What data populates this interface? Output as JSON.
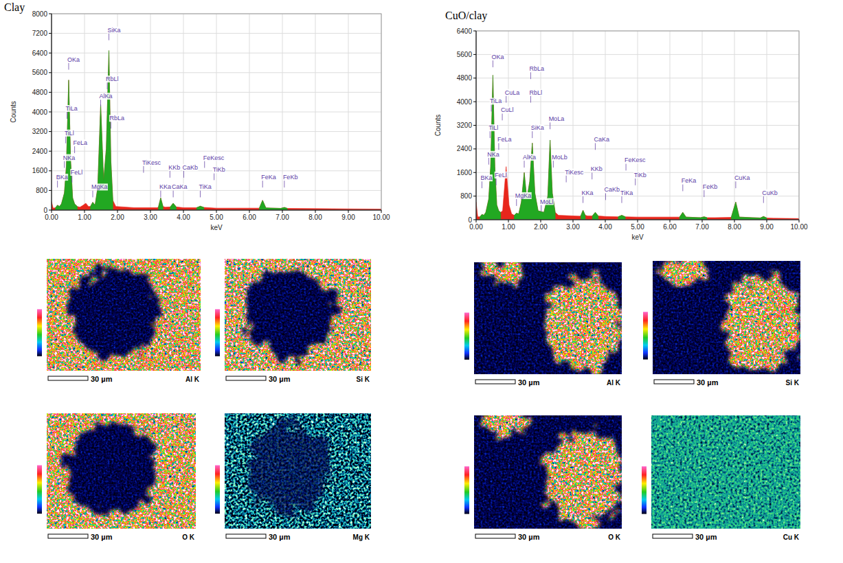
{
  "chart_data": [
    {
      "type": "area",
      "title": "Clay",
      "x_label": "keV",
      "y_label": "Counts",
      "x": [
        0,
        0.05,
        0.12,
        0.18,
        0.24,
        0.3,
        0.39,
        0.45,
        0.52,
        0.58,
        0.64,
        0.7,
        0.78,
        0.86,
        0.96,
        1.04,
        1.12,
        1.18,
        1.25,
        1.32,
        1.4,
        1.49,
        1.58,
        1.66,
        1.74,
        1.8,
        1.86,
        1.95,
        2.5,
        3.2,
        3.24,
        3.31,
        3.38,
        3.45,
        3.6,
        3.69,
        3.78,
        4.0,
        4.4,
        4.51,
        4.62,
        5.0,
        6.3,
        6.4,
        6.5,
        6.95,
        7.06,
        7.15,
        8.0,
        10.0
      ],
      "series": [
        {
          "color": "#e8271c",
          "values": [
            350,
            80,
            100,
            200,
            150,
            250,
            700,
            1800,
            5300,
            2000,
            500,
            250,
            150,
            120,
            200,
            280,
            150,
            150,
            320,
            200,
            900,
            4300,
            1200,
            2500,
            6500,
            2000,
            400,
            150,
            100,
            100,
            120,
            500,
            150,
            120,
            130,
            280,
            130,
            100,
            100,
            160,
            110,
            80,
            80,
            400,
            90,
            70,
            110,
            70,
            60,
            40
          ]
        },
        {
          "color": "#22a822",
          "values": [
            null,
            null,
            100,
            200,
            150,
            250,
            700,
            1800,
            5300,
            2000,
            500,
            250,
            150,
            null,
            null,
            null,
            null,
            150,
            320,
            200,
            900,
            4300,
            1200,
            2500,
            6500,
            2000,
            400,
            null,
            null,
            null,
            120,
            500,
            150,
            null,
            130,
            280,
            130,
            null,
            100,
            160,
            110,
            null,
            80,
            400,
            90,
            70,
            110,
            70,
            null,
            null
          ]
        }
      ],
      "xlim": [
        0,
        10
      ],
      "ylim": [
        0,
        8000
      ],
      "xticks": [
        {
          "value": 0,
          "label": "0.00"
        },
        {
          "value": 1,
          "label": "1.00"
        },
        {
          "value": 2,
          "label": "2.00"
        },
        {
          "value": 3,
          "label": "3.00"
        },
        {
          "value": 4,
          "label": "4.00"
        },
        {
          "value": 5,
          "label": "5.00"
        },
        {
          "value": 6,
          "label": "6.00"
        },
        {
          "value": 7,
          "label": "7.00"
        },
        {
          "value": 8,
          "label": "8.00"
        },
        {
          "value": 9,
          "label": "9.00"
        },
        {
          "value": 10,
          "label": "10.00"
        }
      ],
      "yticks": [
        0,
        800,
        1600,
        2400,
        3200,
        4000,
        4800,
        5600,
        6400,
        7200,
        8000
      ],
      "grid": true,
      "annotations": [
        {
          "text": "BKa",
          "x": 0.18,
          "y": 1200
        },
        {
          "text": "NKa",
          "x": 0.39,
          "y": 2000
        },
        {
          "text": "TiLl",
          "x": 0.43,
          "y": 3000
        },
        {
          "text": "TiLa",
          "x": 0.47,
          "y": 4000
        },
        {
          "text": "OKa",
          "x": 0.52,
          "y": 6000
        },
        {
          "text": "FeLl",
          "x": 0.62,
          "y": 1400
        },
        {
          "text": "FeLa",
          "x": 0.7,
          "y": 2600
        },
        {
          "text": "MgKa",
          "x": 1.25,
          "y": 800
        },
        {
          "text": "AlKa",
          "x": 1.49,
          "y": 4500
        },
        {
          "text": "RbLl",
          "x": 1.69,
          "y": 5200
        },
        {
          "text": "SiKa",
          "x": 1.74,
          "y": 7200
        },
        {
          "text": "RbLa",
          "x": 1.8,
          "y": 3600
        },
        {
          "text": "TiKesc",
          "x": 2.79,
          "y": 1800
        },
        {
          "text": "KKa",
          "x": 3.31,
          "y": 800
        },
        {
          "text": "KKb",
          "x": 3.59,
          "y": 1600
        },
        {
          "text": "CaKa",
          "x": 3.69,
          "y": 800
        },
        {
          "text": "CaKb",
          "x": 4.01,
          "y": 1600
        },
        {
          "text": "TiKa",
          "x": 4.51,
          "y": 800
        },
        {
          "text": "FeKesc",
          "x": 4.64,
          "y": 2000
        },
        {
          "text": "TiKb",
          "x": 4.93,
          "y": 1500
        },
        {
          "text": "FeKa",
          "x": 6.4,
          "y": 1200
        },
        {
          "text": "FeKb",
          "x": 7.06,
          "y": 1200
        }
      ]
    },
    {
      "type": "area",
      "title": "CuO/clay",
      "x_label": "keV",
      "y_label": "Counts",
      "x": [
        0,
        0.05,
        0.12,
        0.18,
        0.24,
        0.3,
        0.39,
        0.45,
        0.52,
        0.58,
        0.64,
        0.7,
        0.76,
        0.82,
        0.93,
        1.02,
        1.1,
        1.18,
        1.25,
        1.32,
        1.4,
        1.49,
        1.57,
        1.66,
        1.74,
        1.82,
        1.92,
        2.1,
        2.22,
        2.29,
        2.36,
        2.45,
        2.55,
        3.2,
        3.24,
        3.31,
        3.38,
        3.45,
        3.6,
        3.69,
        3.78,
        4.0,
        4.4,
        4.51,
        4.62,
        5.0,
        6.3,
        6.4,
        6.5,
        6.95,
        7.06,
        7.15,
        7.4,
        7.9,
        8.04,
        8.15,
        8.8,
        8.9,
        9.0,
        9.2,
        10.0
      ],
      "series": [
        {
          "color": "#e8271c",
          "values": [
            600,
            100,
            100,
            180,
            150,
            250,
            700,
            1800,
            4900,
            1800,
            500,
            300,
            250,
            300,
            1800,
            500,
            200,
            150,
            220,
            200,
            600,
            1600,
            700,
            1300,
            2600,
            900,
            300,
            250,
            800,
            2700,
            900,
            250,
            150,
            120,
            130,
            320,
            150,
            130,
            130,
            250,
            130,
            110,
            100,
            150,
            100,
            90,
            90,
            250,
            90,
            70,
            100,
            70,
            70,
            80,
            600,
            90,
            60,
            110,
            60,
            50,
            40
          ]
        },
        {
          "color": "#22a822",
          "values": [
            null,
            null,
            100,
            180,
            150,
            250,
            700,
            1800,
            4900,
            1800,
            500,
            300,
            250,
            null,
            null,
            null,
            null,
            150,
            220,
            200,
            600,
            1600,
            700,
            1300,
            2600,
            900,
            300,
            250,
            800,
            2700,
            900,
            250,
            null,
            null,
            130,
            320,
            150,
            null,
            130,
            250,
            130,
            null,
            100,
            150,
            100,
            null,
            90,
            250,
            90,
            70,
            100,
            70,
            null,
            80,
            600,
            90,
            60,
            110,
            60,
            null,
            null
          ]
        }
      ],
      "xlim": [
        0,
        10
      ],
      "ylim": [
        0,
        6400
      ],
      "xticks": [
        {
          "value": 0,
          "label": "0.00"
        },
        {
          "value": 1,
          "label": "1.00"
        },
        {
          "value": 2,
          "label": "2.00"
        },
        {
          "value": 3,
          "label": "3.00"
        },
        {
          "value": 4,
          "label": "4.00"
        },
        {
          "value": 5,
          "label": "5.00"
        },
        {
          "value": 6,
          "label": "6.00"
        },
        {
          "value": 7,
          "label": "7.00"
        },
        {
          "value": 8,
          "label": "8.00"
        },
        {
          "value": 9,
          "label": "9.00"
        },
        {
          "value": 10,
          "label": "10.00"
        }
      ],
      "yticks": [
        0,
        800,
        1600,
        2400,
        3200,
        4000,
        4800,
        5600,
        6400
      ],
      "grid": true,
      "annotations": [
        {
          "text": "BKa",
          "x": 0.18,
          "y": 1300
        },
        {
          "text": "NKa",
          "x": 0.39,
          "y": 2100
        },
        {
          "text": "TiLl",
          "x": 0.43,
          "y": 3000
        },
        {
          "text": "TiLa",
          "x": 0.47,
          "y": 3900
        },
        {
          "text": "OKa",
          "x": 0.52,
          "y": 5400
        },
        {
          "text": "FeLl",
          "x": 0.62,
          "y": 1400
        },
        {
          "text": "FeLa",
          "x": 0.7,
          "y": 2600
        },
        {
          "text": "CuLl",
          "x": 0.81,
          "y": 3600
        },
        {
          "text": "CuLa",
          "x": 0.93,
          "y": 4200
        },
        {
          "text": "MgKa",
          "x": 1.25,
          "y": 700
        },
        {
          "text": "AlKa",
          "x": 1.49,
          "y": 2000
        },
        {
          "text": "RbLl",
          "x": 1.69,
          "y": 4200
        },
        {
          "text": "RbLa",
          "x": 1.69,
          "y": 5000
        },
        {
          "text": "SiKa",
          "x": 1.74,
          "y": 3000
        },
        {
          "text": "MoLl",
          "x": 2.02,
          "y": 500
        },
        {
          "text": "MoLa",
          "x": 2.29,
          "y": 3300
        },
        {
          "text": "MoLb",
          "x": 2.39,
          "y": 2000
        },
        {
          "text": "TiKesc",
          "x": 2.79,
          "y": 1500
        },
        {
          "text": "KKa",
          "x": 3.31,
          "y": 800
        },
        {
          "text": "KKb",
          "x": 3.59,
          "y": 1600
        },
        {
          "text": "CaKa",
          "x": 3.69,
          "y": 2600
        },
        {
          "text": "CaKb",
          "x": 4.01,
          "y": 900
        },
        {
          "text": "TiKa",
          "x": 4.51,
          "y": 800
        },
        {
          "text": "FeKesc",
          "x": 4.64,
          "y": 1900
        },
        {
          "text": "TiKb",
          "x": 4.93,
          "y": 1400
        },
        {
          "text": "FeKa",
          "x": 6.4,
          "y": 1200
        },
        {
          "text": "FeKb",
          "x": 7.06,
          "y": 1000
        },
        {
          "text": "CuKa",
          "x": 8.04,
          "y": 1300
        },
        {
          "text": "CuKb",
          "x": 8.9,
          "y": 800
        }
      ]
    }
  ],
  "maps": [
    [
      {
        "label": "Al K",
        "scale_bar": "30 µm"
      },
      {
        "label": "Si K",
        "scale_bar": "30 µm"
      },
      {
        "label": "O K",
        "scale_bar": "30 µm"
      },
      {
        "label": "Mg K",
        "scale_bar": "30 µm"
      }
    ],
    [
      {
        "label": "Al K",
        "scale_bar": "30 µm"
      },
      {
        "label": "Si K",
        "scale_bar": "30 µm"
      },
      {
        "label": "O K",
        "scale_bar": "30 µm"
      },
      {
        "label": "Cu K",
        "scale_bar": "30 µm"
      }
    ]
  ]
}
